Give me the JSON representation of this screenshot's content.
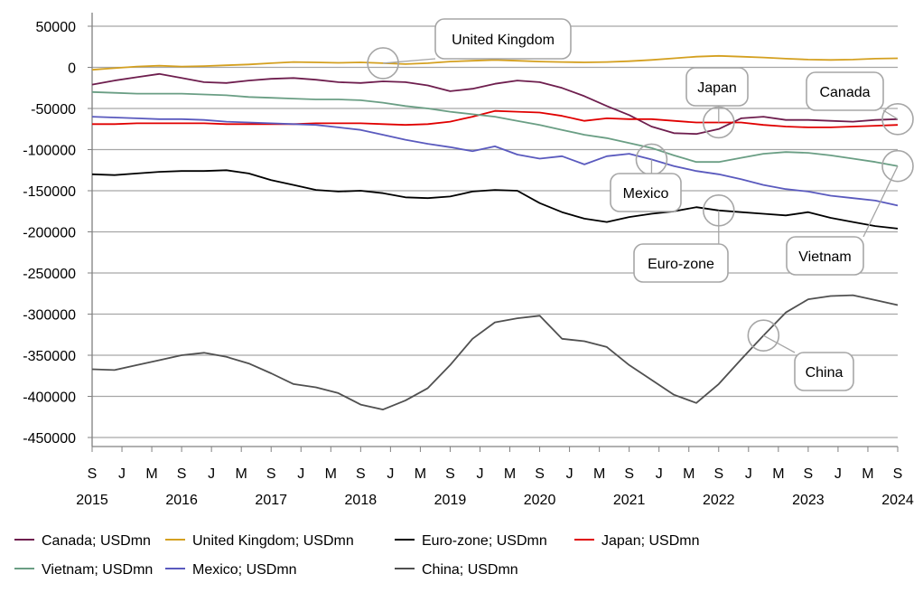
{
  "chart_data": {
    "type": "line",
    "title": "",
    "xlabel": "",
    "ylabel": "",
    "ylim": [
      -450000,
      50000
    ],
    "y_ticks": [
      "50000",
      "0",
      "-50000",
      "-100000",
      "-150000",
      "-200000",
      "-250000",
      "-300000",
      "-350000",
      "-400000",
      "-450000"
    ],
    "x_month_ticks": [
      "S",
      "J",
      "M",
      "S",
      "J",
      "M",
      "S",
      "J",
      "M",
      "S",
      "J",
      "M",
      "S",
      "J",
      "M",
      "S",
      "J",
      "M",
      "S",
      "J",
      "M",
      "S",
      "J",
      "M",
      "S",
      "J",
      "M",
      "S"
    ],
    "x_year_ticks": [
      "2015",
      "2016",
      "2017",
      "2018",
      "2019",
      "2020",
      "2021",
      "2022",
      "2023",
      "2024"
    ],
    "x_range": [
      "2015-09",
      "2024-09"
    ],
    "grid": "horizontal",
    "legend_position": "bottom",
    "series": [
      {
        "name": "Canada; USDmn",
        "color": "#6e1e4e",
        "callout": "Canada",
        "points": [
          [
            "2015-09",
            -21000
          ],
          [
            "2015-12",
            -16000
          ],
          [
            "2016-03",
            -12000
          ],
          [
            "2016-06",
            -8000
          ],
          [
            "2016-09",
            -13000
          ],
          [
            "2016-12",
            -18000
          ],
          [
            "2017-03",
            -19000
          ],
          [
            "2017-06",
            -16000
          ],
          [
            "2017-09",
            -14000
          ],
          [
            "2017-12",
            -13000
          ],
          [
            "2018-03",
            -15000
          ],
          [
            "2018-06",
            -18000
          ],
          [
            "2018-09",
            -19000
          ],
          [
            "2018-12",
            -17000
          ],
          [
            "2019-03",
            -18000
          ],
          [
            "2019-06",
            -22000
          ],
          [
            "2019-09",
            -29000
          ],
          [
            "2019-12",
            -26000
          ],
          [
            "2020-03",
            -20000
          ],
          [
            "2020-06",
            -16000
          ],
          [
            "2020-09",
            -18000
          ],
          [
            "2020-12",
            -25000
          ],
          [
            "2021-03",
            -35000
          ],
          [
            "2021-06",
            -47000
          ],
          [
            "2021-09",
            -58000
          ],
          [
            "2021-12",
            -72000
          ],
          [
            "2022-03",
            -80000
          ],
          [
            "2022-06",
            -81000
          ],
          [
            "2022-09",
            -75000
          ],
          [
            "2022-12",
            -62000
          ],
          [
            "2023-03",
            -60000
          ],
          [
            "2023-06",
            -64000
          ],
          [
            "2023-09",
            -64000
          ],
          [
            "2023-12",
            -65000
          ],
          [
            "2024-03",
            -66000
          ],
          [
            "2024-06",
            -64000
          ],
          [
            "2024-09",
            -63000
          ]
        ]
      },
      {
        "name": "United Kingdom; USDmn",
        "color": "#d4a020",
        "callout": "United Kingdom",
        "points": [
          [
            "2015-09",
            -3000
          ],
          [
            "2015-12",
            -1000
          ],
          [
            "2016-03",
            1000
          ],
          [
            "2016-06",
            2000
          ],
          [
            "2016-09",
            1000
          ],
          [
            "2016-12",
            1500
          ],
          [
            "2017-03",
            2500
          ],
          [
            "2017-06",
            3500
          ],
          [
            "2017-09",
            5000
          ],
          [
            "2017-12",
            6500
          ],
          [
            "2018-03",
            6000
          ],
          [
            "2018-06",
            5500
          ],
          [
            "2018-09",
            6000
          ],
          [
            "2018-12",
            5000
          ],
          [
            "2019-03",
            4000
          ],
          [
            "2019-06",
            5000
          ],
          [
            "2019-09",
            7000
          ],
          [
            "2019-12",
            8000
          ],
          [
            "2020-03",
            9000
          ],
          [
            "2020-06",
            8000
          ],
          [
            "2020-09",
            7000
          ],
          [
            "2020-12",
            6500
          ],
          [
            "2021-03",
            6000
          ],
          [
            "2021-06",
            6500
          ],
          [
            "2021-09",
            7500
          ],
          [
            "2021-12",
            9000
          ],
          [
            "2022-03",
            11000
          ],
          [
            "2022-06",
            13000
          ],
          [
            "2022-09",
            14000
          ],
          [
            "2022-12",
            13000
          ],
          [
            "2023-03",
            12000
          ],
          [
            "2023-06",
            10500
          ],
          [
            "2023-09",
            9500
          ],
          [
            "2023-12",
            9000
          ],
          [
            "2024-03",
            9500
          ],
          [
            "2024-06",
            10500
          ],
          [
            "2024-09",
            11000
          ]
        ]
      },
      {
        "name": "Euro-zone; USDmn",
        "color": "#000000",
        "callout": "Euro-zone",
        "points": [
          [
            "2015-09",
            -130000
          ],
          [
            "2015-12",
            -131000
          ],
          [
            "2016-03",
            -129000
          ],
          [
            "2016-06",
            -127000
          ],
          [
            "2016-09",
            -126000
          ],
          [
            "2016-12",
            -126000
          ],
          [
            "2017-03",
            -125000
          ],
          [
            "2017-06",
            -129000
          ],
          [
            "2017-09",
            -137000
          ],
          [
            "2017-12",
            -143000
          ],
          [
            "2018-03",
            -149000
          ],
          [
            "2018-06",
            -151000
          ],
          [
            "2018-09",
            -150000
          ],
          [
            "2018-12",
            -153000
          ],
          [
            "2019-03",
            -158000
          ],
          [
            "2019-06",
            -159000
          ],
          [
            "2019-09",
            -157000
          ],
          [
            "2019-12",
            -151000
          ],
          [
            "2020-03",
            -149000
          ],
          [
            "2020-06",
            -150000
          ],
          [
            "2020-09",
            -165000
          ],
          [
            "2020-12",
            -176000
          ],
          [
            "2021-03",
            -184000
          ],
          [
            "2021-06",
            -188000
          ],
          [
            "2021-09",
            -182000
          ],
          [
            "2021-12",
            -178000
          ],
          [
            "2022-03",
            -175000
          ],
          [
            "2022-06",
            -170000
          ],
          [
            "2022-09",
            -174000
          ],
          [
            "2022-12",
            -176000
          ],
          [
            "2023-03",
            -178000
          ],
          [
            "2023-06",
            -180000
          ],
          [
            "2023-09",
            -176000
          ],
          [
            "2023-12",
            -183000
          ],
          [
            "2024-03",
            -188000
          ],
          [
            "2024-06",
            -193000
          ],
          [
            "2024-09",
            -196000
          ]
        ]
      },
      {
        "name": "Japan; USDmn",
        "color": "#e00000",
        "callout": "Japan",
        "points": [
          [
            "2015-09",
            -69000
          ],
          [
            "2015-12",
            -69000
          ],
          [
            "2016-03",
            -68000
          ],
          [
            "2016-06",
            -68000
          ],
          [
            "2016-09",
            -68000
          ],
          [
            "2016-12",
            -68000
          ],
          [
            "2017-03",
            -69000
          ],
          [
            "2017-06",
            -69000
          ],
          [
            "2017-09",
            -69000
          ],
          [
            "2017-12",
            -69000
          ],
          [
            "2018-03",
            -68000
          ],
          [
            "2018-06",
            -68000
          ],
          [
            "2018-09",
            -68000
          ],
          [
            "2018-12",
            -69000
          ],
          [
            "2019-03",
            -70000
          ],
          [
            "2019-06",
            -69000
          ],
          [
            "2019-09",
            -66000
          ],
          [
            "2019-12",
            -60000
          ],
          [
            "2020-03",
            -53000
          ],
          [
            "2020-06",
            -54000
          ],
          [
            "2020-09",
            -55000
          ],
          [
            "2020-12",
            -59000
          ],
          [
            "2021-03",
            -65000
          ],
          [
            "2021-06",
            -62000
          ],
          [
            "2021-09",
            -63000
          ],
          [
            "2021-12",
            -63000
          ],
          [
            "2022-03",
            -65000
          ],
          [
            "2022-06",
            -67000
          ],
          [
            "2022-09",
            -67000
          ],
          [
            "2022-12",
            -67000
          ],
          [
            "2023-03",
            -70000
          ],
          [
            "2023-06",
            -72000
          ],
          [
            "2023-09",
            -73000
          ],
          [
            "2023-12",
            -73000
          ],
          [
            "2024-03",
            -72000
          ],
          [
            "2024-06",
            -71000
          ],
          [
            "2024-09",
            -70000
          ]
        ]
      },
      {
        "name": "Vietnam; USDmn",
        "color": "#6a9e84",
        "callout": "Vietnam",
        "points": [
          [
            "2015-09",
            -30000
          ],
          [
            "2015-12",
            -31000
          ],
          [
            "2016-03",
            -32000
          ],
          [
            "2016-06",
            -32000
          ],
          [
            "2016-09",
            -32000
          ],
          [
            "2016-12",
            -33000
          ],
          [
            "2017-03",
            -34000
          ],
          [
            "2017-06",
            -36000
          ],
          [
            "2017-09",
            -37000
          ],
          [
            "2017-12",
            -38000
          ],
          [
            "2018-03",
            -39000
          ],
          [
            "2018-06",
            -39000
          ],
          [
            "2018-09",
            -40000
          ],
          [
            "2018-12",
            -43000
          ],
          [
            "2019-03",
            -47000
          ],
          [
            "2019-06",
            -50000
          ],
          [
            "2019-09",
            -54000
          ],
          [
            "2019-12",
            -57000
          ],
          [
            "2020-03",
            -60000
          ],
          [
            "2020-06",
            -65000
          ],
          [
            "2020-09",
            -70000
          ],
          [
            "2020-12",
            -76000
          ],
          [
            "2021-03",
            -82000
          ],
          [
            "2021-06",
            -86000
          ],
          [
            "2021-09",
            -92000
          ],
          [
            "2021-12",
            -98000
          ],
          [
            "2022-03",
            -107000
          ],
          [
            "2022-06",
            -115000
          ],
          [
            "2022-09",
            -115000
          ],
          [
            "2022-12",
            -110000
          ],
          [
            "2023-03",
            -105000
          ],
          [
            "2023-06",
            -103000
          ],
          [
            "2023-09",
            -104000
          ],
          [
            "2023-12",
            -107000
          ],
          [
            "2024-03",
            -111000
          ],
          [
            "2024-06",
            -115000
          ],
          [
            "2024-09",
            -120000
          ]
        ]
      },
      {
        "name": "Mexico; USDmn",
        "color": "#5a5abe",
        "callout": "Mexico",
        "points": [
          [
            "2015-09",
            -60000
          ],
          [
            "2015-12",
            -61000
          ],
          [
            "2016-03",
            -62000
          ],
          [
            "2016-06",
            -63000
          ],
          [
            "2016-09",
            -63000
          ],
          [
            "2016-12",
            -64000
          ],
          [
            "2017-03",
            -66000
          ],
          [
            "2017-06",
            -67000
          ],
          [
            "2017-09",
            -68000
          ],
          [
            "2017-12",
            -69000
          ],
          [
            "2018-03",
            -70000
          ],
          [
            "2018-06",
            -73000
          ],
          [
            "2018-09",
            -76000
          ],
          [
            "2018-12",
            -82000
          ],
          [
            "2019-03",
            -88000
          ],
          [
            "2019-06",
            -93000
          ],
          [
            "2019-09",
            -97000
          ],
          [
            "2019-12",
            -102000
          ],
          [
            "2020-03",
            -96000
          ],
          [
            "2020-06",
            -106000
          ],
          [
            "2020-09",
            -111000
          ],
          [
            "2020-12",
            -108000
          ],
          [
            "2021-03",
            -118000
          ],
          [
            "2021-06",
            -108000
          ],
          [
            "2021-09",
            -105000
          ],
          [
            "2021-12",
            -112000
          ],
          [
            "2022-03",
            -120000
          ],
          [
            "2022-06",
            -126000
          ],
          [
            "2022-09",
            -130000
          ],
          [
            "2022-12",
            -136000
          ],
          [
            "2023-03",
            -143000
          ],
          [
            "2023-06",
            -148000
          ],
          [
            "2023-09",
            -151000
          ],
          [
            "2023-12",
            -156000
          ],
          [
            "2024-03",
            -159000
          ],
          [
            "2024-06",
            -162000
          ],
          [
            "2024-09",
            -168000
          ]
        ]
      },
      {
        "name": "China; USDmn",
        "color": "#505050",
        "callout": "China",
        "points": [
          [
            "2015-09",
            -367000
          ],
          [
            "2015-12",
            -368000
          ],
          [
            "2016-03",
            -362000
          ],
          [
            "2016-06",
            -356000
          ],
          [
            "2016-09",
            -350000
          ],
          [
            "2016-12",
            -347000
          ],
          [
            "2017-03",
            -352000
          ],
          [
            "2017-06",
            -360000
          ],
          [
            "2017-09",
            -372000
          ],
          [
            "2017-12",
            -385000
          ],
          [
            "2018-03",
            -389000
          ],
          [
            "2018-06",
            -396000
          ],
          [
            "2018-09",
            -410000
          ],
          [
            "2018-12",
            -416000
          ],
          [
            "2019-03",
            -405000
          ],
          [
            "2019-06",
            -390000
          ],
          [
            "2019-09",
            -362000
          ],
          [
            "2019-12",
            -330000
          ],
          [
            "2020-03",
            -310000
          ],
          [
            "2020-06",
            -305000
          ],
          [
            "2020-09",
            -302000
          ],
          [
            "2020-12",
            -330000
          ],
          [
            "2021-03",
            -333000
          ],
          [
            "2021-06",
            -340000
          ],
          [
            "2021-09",
            -362000
          ],
          [
            "2021-12",
            -380000
          ],
          [
            "2022-03",
            -398000
          ],
          [
            "2022-06",
            -408000
          ],
          [
            "2022-09",
            -385000
          ],
          [
            "2022-12",
            -355000
          ],
          [
            "2023-03",
            -326000
          ],
          [
            "2023-06",
            -298000
          ],
          [
            "2023-09",
            -282000
          ],
          [
            "2023-12",
            -278000
          ],
          [
            "2024-03",
            -277000
          ],
          [
            "2024-06",
            -283000
          ],
          [
            "2024-09",
            -289000
          ]
        ]
      }
    ]
  }
}
